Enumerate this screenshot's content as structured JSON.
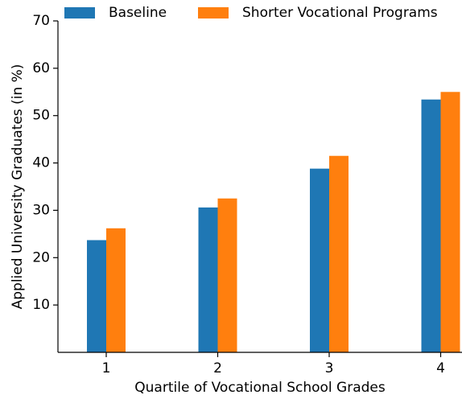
{
  "chart_data": {
    "type": "bar",
    "x_label": "Quartile of Vocational School Grades",
    "y_label": "Applied University Graduates (in %)",
    "categories": [
      "1",
      "2",
      "3",
      "4"
    ],
    "series": [
      {
        "name": "Baseline",
        "color": "#1f77b4",
        "values": [
          23.7,
          30.6,
          38.8,
          53.4
        ]
      },
      {
        "name": "Shorter Vocational Programs",
        "color": "#ff7f0e",
        "values": [
          26.2,
          32.5,
          41.5,
          55.0
        ]
      }
    ],
    "ylim": [
      0,
      70
    ],
    "yticks": [
      10,
      20,
      30,
      40,
      50,
      60,
      70
    ],
    "legend": "top"
  }
}
